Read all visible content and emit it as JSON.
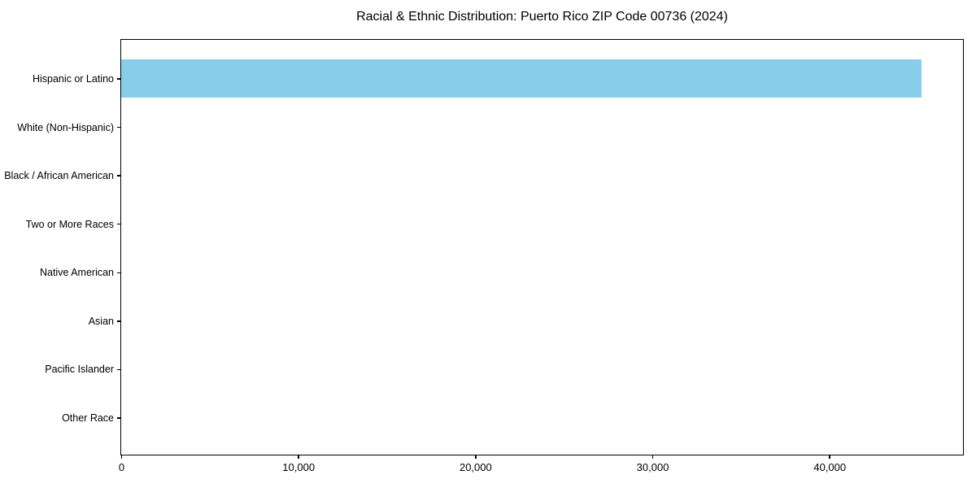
{
  "title": "Racial & Ethnic Distribution: Puerto Rico ZIP Code 00736 (2024)",
  "colors": {
    "bar": "#87CEEB",
    "axis": "#000000",
    "background": "#FFFFFF",
    "text": "#000000"
  },
  "chart_data": {
    "type": "bar",
    "orientation": "horizontal",
    "title": "Racial & Ethnic Distribution: Puerto Rico ZIP Code 00736 (2024)",
    "categories": [
      "Hispanic or Latino",
      "White (Non-Hispanic)",
      "Black / African American",
      "Two or More Races",
      "Native American",
      "Asian",
      "Pacific Islander",
      "Other Race"
    ],
    "values": [
      45200,
      0,
      0,
      0,
      0,
      0,
      0,
      0
    ],
    "xlabel": "",
    "ylabel": "",
    "xlim": [
      0,
      47500
    ],
    "x_ticks": [
      0,
      10000,
      20000,
      30000,
      40000
    ],
    "x_tick_labels": [
      "0",
      "10,000",
      "20,000",
      "30,000",
      "40,000"
    ],
    "grid": false,
    "legend": false,
    "bar_color": "#87CEEB"
  }
}
